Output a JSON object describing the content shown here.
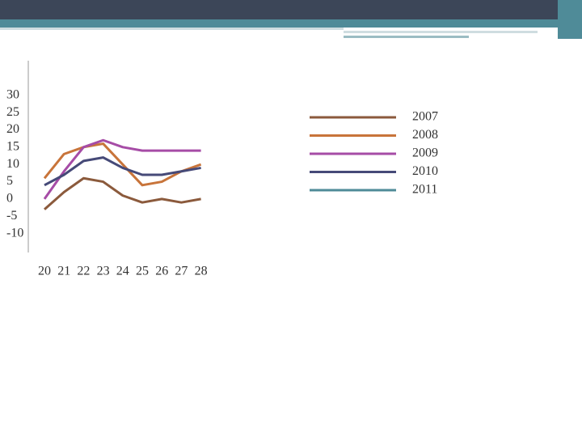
{
  "chart_data": {
    "type": "line",
    "categories": [
      "20",
      "21",
      "22",
      "23",
      "24",
      "25",
      "26",
      "27",
      "28"
    ],
    "series": [
      {
        "name": "2007",
        "color": "#8b5a3c",
        "values": [
          -3,
          2,
          6,
          5,
          1,
          -1,
          0,
          -1,
          0
        ]
      },
      {
        "name": "2008",
        "color": "#c8743a",
        "values": [
          6,
          13,
          15,
          16,
          10,
          4,
          5,
          8,
          10
        ]
      },
      {
        "name": "2009",
        "color": "#a64ca6",
        "values": [
          0,
          8,
          15,
          17,
          15,
          14,
          14,
          14,
          14
        ]
      },
      {
        "name": "2010",
        "color": "#464a78",
        "values": [
          4,
          7,
          11,
          12,
          9,
          7,
          7,
          8,
          9
        ]
      },
      {
        "name": "2011",
        "color": "#4f8b98",
        "values": [
          null,
          null,
          null,
          null,
          null,
          null,
          null,
          null,
          null
        ]
      }
    ],
    "ylim": [
      -15,
      40
    ],
    "yticks": [
      30,
      25,
      20,
      15,
      10,
      5,
      0,
      -5,
      -10
    ]
  }
}
